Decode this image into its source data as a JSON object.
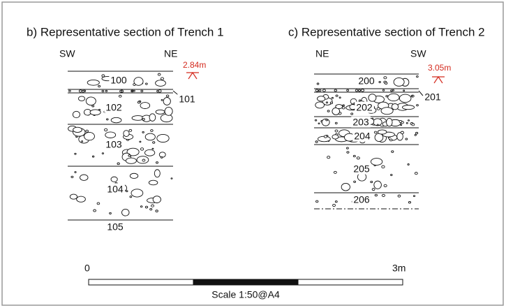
{
  "panels": [
    {
      "title": "b) Representative section of Trench 1",
      "left": "SW",
      "right": "NE",
      "level": "2.84m",
      "layers": [
        "100",
        "101",
        "102",
        "103",
        "104",
        "105"
      ]
    },
    {
      "title": "c) Representative section of Trench 2",
      "left": "NE",
      "right": "SW",
      "level": "3.05m",
      "layers": [
        "200",
        "201",
        "202",
        "203",
        "204",
        "205",
        "206"
      ]
    }
  ],
  "scale": {
    "start": "0",
    "end": "3m",
    "label": "Scale 1:50@A4"
  }
}
